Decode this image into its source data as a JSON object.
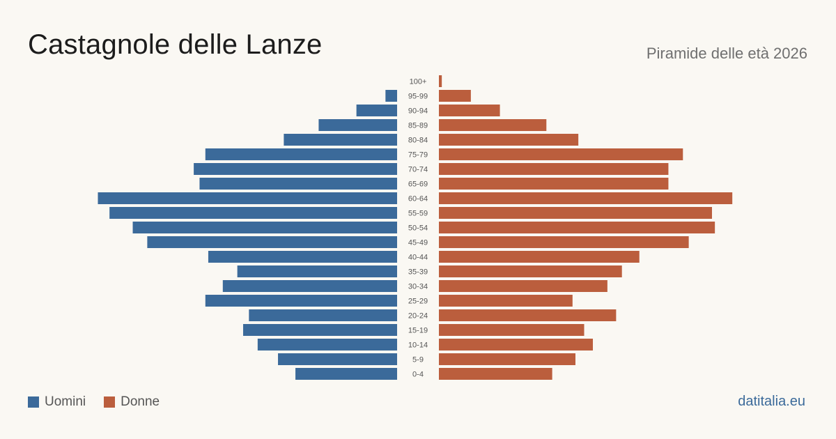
{
  "header": {
    "title": "Castagnole delle Lanze",
    "subtitle": "Piramide delle età 2026"
  },
  "footer": {
    "source": "datitalia.eu"
  },
  "colors": {
    "male": "#3b6a9a",
    "female": "#bb5e3d"
  },
  "chart_data": {
    "type": "bar",
    "orientation": "horizontal-pyramid",
    "categories": [
      "100+",
      "95-99",
      "90-94",
      "85-89",
      "80-84",
      "75-79",
      "70-74",
      "65-69",
      "60-64",
      "55-59",
      "50-54",
      "45-49",
      "40-44",
      "35-39",
      "30-34",
      "25-29",
      "20-24",
      "15-19",
      "10-14",
      "5-9",
      "0-4"
    ],
    "series": [
      {
        "name": "Uomini",
        "values": [
          0,
          4,
          14,
          27,
          39,
          66,
          70,
          68,
          103,
          99,
          91,
          86,
          65,
          55,
          60,
          66,
          51,
          53,
          48,
          41,
          35
        ]
      },
      {
        "name": "Donne",
        "values": [
          1,
          11,
          21,
          37,
          48,
          84,
          79,
          79,
          101,
          94,
          95,
          86,
          69,
          63,
          58,
          46,
          61,
          50,
          53,
          47,
          39
        ]
      }
    ],
    "legend": "bottom-left",
    "grid": false
  }
}
